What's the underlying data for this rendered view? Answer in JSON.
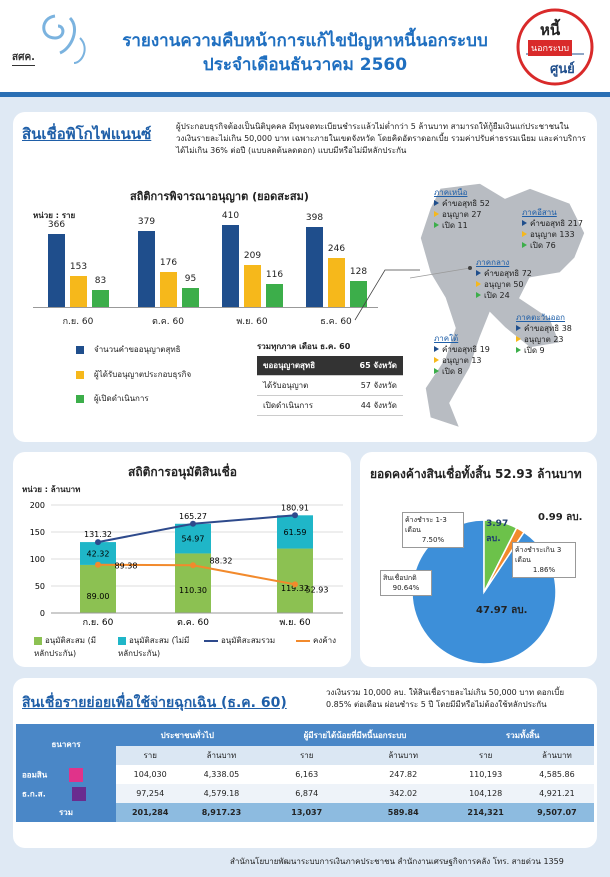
{
  "header": {
    "title_line1": "รายงานความคืบหน้าการแก้ไขปัญหาหนี้นอกระบบ",
    "title_line2": "ประจำเดือนธันวาคม 2560",
    "logo_left_text": "สศค.",
    "logo_right_top": "หนี้",
    "logo_right_mid": "นอกระบบ",
    "logo_right_bottom": "ศูนย์"
  },
  "pico": {
    "title": "สินเชื่อพิโกไฟแนนซ์",
    "desc": "ผู้ประกอบธุรกิจต้องเป็นนิติบุคคล มีทุนจดทะเบียนชำระแล้วไม่ต่ำกว่า 5 ล้านบาท สามารถให้กู้ยืมเงินแก่ประชาชนในวงเงินรายละไม่เกิน 50,000 บาท เฉพาะภายในเขตจังหวัด โดยคิดอัตราดอกเบี้ย รวมค่าปรับค่าธรรมเนียม และค่าบริการ ได้ไม่เกิน 36% ต่อปี (แบบลดต้นลดดอก) แบบมีหรือไม่มีหลักประกัน"
  },
  "license": {
    "title": "สถิติการพิจารณาอนุญาต (ยอดสะสม)",
    "unit": "หน่วย : ราย",
    "legend": [
      "จำนวนคำขออนุญาตสุทธิ",
      "ผู้ได้รับอนุญาตประกอบธุรกิจ",
      "ผู้เปิดดำเนินการ"
    ],
    "summary": {
      "title": "รวมทุกภาค เดือน ธ.ค. 60",
      "rows": [
        [
          "ขออนุญาตสุทธิ",
          "65 จังหวัด"
        ],
        [
          "ได้รับอนุญาต",
          "57 จังหวัด"
        ],
        [
          "เปิดดำเนินการ",
          "44 จังหวัด"
        ]
      ]
    }
  },
  "regions": [
    {
      "name": "ภาคเหนือ",
      "a": "คำขอสุทธิ 52",
      "b": "อนุญาต 27",
      "c": "เปิด 11"
    },
    {
      "name": "ภาคอีสาน",
      "a": "คำขอสุทธิ 217",
      "b": "อนุญาต 133",
      "c": "เปิด 76"
    },
    {
      "name": "ภาคกลาง",
      "a": "คำขอสุทธิ 72",
      "b": "อนุญาต 50",
      "c": "เปิด 24"
    },
    {
      "name": "ภาคตะวันออก",
      "a": "คำขอสุทธิ 38",
      "b": "อนุญาต 23",
      "c": "เปิด 9"
    },
    {
      "name": "ภาคใต้",
      "a": "คำขอสุทธิ 19",
      "b": "อนุญาต 13",
      "c": "เปิด 8"
    }
  ],
  "loan": {
    "title": "สถิติการอนุมัติสินเชื่อ",
    "unit": "หน่วย : ล้านบาท",
    "legend": [
      "อนุมัติสะสม (มีหลักประกัน)",
      "อนุมัติสะสม (ไม่มีหลักประกัน)",
      "อนุมัติสะสมรวม",
      "คงค้าง"
    ]
  },
  "outstanding": {
    "title": "ยอดคงค้างสินเชื่อทั้งสิ้น 52.93 ล้านบาท",
    "big": "47.97 ลบ.",
    "green_val": "3.97",
    "green_unit": "ลบ.",
    "orange_val": "0.99 ลบ.",
    "lbl1": "ค้างชำระ 1-3 เดือน",
    "lbl1p": "7.50%",
    "lbl2": "ค้างชำระเกิน 3 เดือน",
    "lbl2p": "1.86%",
    "lbl3": "สินเชื่อปกติ",
    "lbl3p": "90.64%"
  },
  "emergency": {
    "title": "สินเชื่อรายย่อยเพื่อใช้จ่ายฉุกเฉิน (ธ.ค. 60)",
    "desc": "วงเงินรวม 10,000 ลบ. ให้สินเชื่อรายละไม่เกิน 50,000 บาท ดอกเบี้ย 0.85% ต่อเดือน ผ่อนชำระ 5 ปี โดยมีมีหรือไม่ต้องใช้หลักประกัน",
    "head": [
      "ธนาคาร",
      "ประชาชนทั่วไป",
      "ผู้มีรายได้น้อยที่มีหนี้นอกระบบ",
      "รวมทั้งสิ้น"
    ],
    "sub": [
      "ราย",
      "ล้านบาท",
      "ราย",
      "ล้านบาท",
      "ราย",
      "ล้านบาท"
    ],
    "rows": [
      [
        "ออมสิน",
        "104,030",
        "4,338.05",
        "6,163",
        "247.82",
        "110,193",
        "4,585.86"
      ],
      [
        "ธ.ก.ส.",
        "97,254",
        "4,579.18",
        "6,874",
        "342.02",
        "104,128",
        "4,921.21"
      ],
      [
        "รวม",
        "201,284",
        "8,917.23",
        "13,037",
        "589.84",
        "214,321",
        "9,507.07"
      ]
    ]
  },
  "footer": "สำนักนโยบายพัฒนาระบบการเงินภาคประชาชน สำนักงานเศรษฐกิจการคลัง โทร. สายด่วน 1359",
  "chart_data": [
    {
      "type": "bar",
      "title": "สถิติการพิจารณาอนุญาต (ยอดสะสม)",
      "categories": [
        "ก.ย. 60",
        "ต.ค. 60",
        "พ.ย. 60",
        "ธ.ค. 60"
      ],
      "series": [
        {
          "name": "จำนวนคำขออนุญาตสุทธิ",
          "values": [
            366,
            379,
            410,
            398
          ]
        },
        {
          "name": "ผู้ได้รับอนุญาตประกอบธุรกิจ",
          "values": [
            153,
            176,
            209,
            246
          ]
        },
        {
          "name": "ผู้เปิดดำเนินการ",
          "values": [
            83,
            95,
            116,
            128
          ]
        }
      ],
      "colors": [
        "#1f4e8c",
        "#f6b81b",
        "#3cae4a"
      ]
    },
    {
      "type": "bar",
      "title": "สถิติการอนุมัติสินเชื่อ",
      "categories": [
        "ก.ย. 60",
        "ต.ค. 60",
        "พ.ย. 60"
      ],
      "ylim": [
        0,
        200
      ],
      "yticks": [
        0,
        50,
        100,
        150,
        200
      ],
      "series": [
        {
          "name": "อนุมัติสะสม (มีหลักประกัน)",
          "values": [
            89.0,
            110.3,
            119.32
          ]
        },
        {
          "name": "อนุมัติสะสม (ไม่มีหลักประกัน)",
          "values": [
            42.32,
            54.97,
            61.59
          ]
        },
        {
          "name": "อนุมัติสะสมรวม",
          "values": [
            131.32,
            165.27,
            180.91
          ]
        },
        {
          "name": "คงค้าง",
          "values": [
            89.38,
            88.32,
            52.93
          ]
        }
      ],
      "colors": [
        "#8cc152",
        "#1fb6c8",
        "#2e4a8c",
        "#f28a2c"
      ]
    },
    {
      "type": "pie",
      "title": "ยอดคงค้างสินเชื่อทั้งสิ้น 52.93 ล้านบาท",
      "labels": [
        "สินเชื่อปกติ",
        "ค้างชำระ 1-3 เดือน",
        "ค้างชำระเกิน 3 เดือน"
      ],
      "values": [
        47.97,
        3.97,
        0.99
      ],
      "percent": [
        90.64,
        7.5,
        1.86
      ],
      "colors": [
        "#3d8fd9",
        "#6cc24a",
        "#f28a2c"
      ]
    }
  ]
}
